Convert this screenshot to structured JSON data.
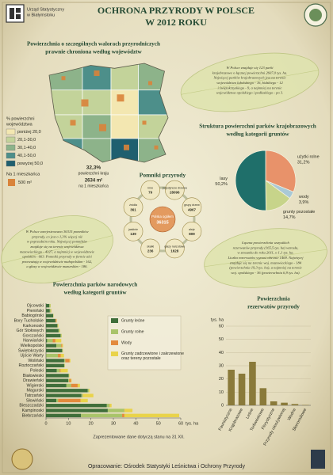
{
  "header": {
    "institution": [
      "Urząd Statystyczny",
      "w Białymstoku"
    ],
    "title_line1": "OCHRONA PRZYRODY W POLSCE",
    "title_line2": "W 2012 ROKU"
  },
  "map": {
    "title": [
      "Powierzchnia o szczególnych walorach przyrodniczych",
      "prawnie chroniona według województw"
    ],
    "legend_title": [
      "% powierzchni",
      "województwa"
    ],
    "classes": [
      {
        "label": "poniżej 20,0",
        "color": "#f3e7b1"
      },
      {
        "label": "20,1-30,0",
        "color": "#c3d39a"
      },
      {
        "label": "30,1-40,0",
        "color": "#8db38a"
      },
      {
        "label": "40,1-50,0",
        "color": "#4d8f8a"
      },
      {
        "label": "powyżej 50,0",
        "color": "#1f5f6f"
      }
    ],
    "per_capita_title": "Na 1 mieszkańca",
    "per_capita_sample": "500 m²",
    "country_share": "32,3%",
    "country_share_text": "powierzchni kraju",
    "per_capita_country": "2634 m²",
    "per_capita_country_text": "na 1 mieszkańca"
  },
  "notes": [
    [
      "W Polsce znajduje się 123 parki",
      "krajobrazowe o łącznej powierzchni 2607,0 tys. ha.",
      "Najwięcej parków krajobrazowych jest na terenie",
      "województwa lubelskiego - 16, łódzkiego - 12",
      "i świętokrzyskiego - 9, a najmniej na terenie",
      "województwa opolskiego i podlaskiego - po 3."
    ],
    [
      "W Polsce zarejestrowano 36315 pomników",
      "przyrody, co jest o 1,3% więcej niż",
      "w poprzednim roku. Najwięcej pomników",
      "znajduje się na terenie województwa",
      "mazowieckiego - 4327, a najmniej w województwie",
      "opolskim - 663. Pomniki przyrody w formie alei",
      "przeważają w województwie małopolskim - 162,",
      "a głazy w województwie mazurskim - 186."
    ],
    [
      "Łączna powierzchnia wszystkich",
      "rezerwatów przyrody (165,5 tys. ha) wzrosła,",
      "w stosunku do roku 2011, o 1,1 tys. ha.",
      "Liczba rezerwatów wynosi obecnie 1469. Najwięcej",
      "znajduje się na terenie woj. mazowieckiego - 184",
      "(powierzchnia 19,3 tys. ha), a najmniej na terenie",
      "woj. opolskiego - 36 (powierzchnia 6,9 tys. ha)."
    ]
  ],
  "monuments": {
    "title": "Pomniki przyrody",
    "total": {
      "label": "Polska ogółem",
      "value": 36315
    },
    "items": [
      {
        "label": "pojedyncze drzewa",
        "value": 28096
      },
      {
        "label": "grupy drzew",
        "value": 4967
      },
      {
        "label": "aleje",
        "value": 809
      },
      {
        "label": "głazy narzutowe",
        "value": 1628
      },
      {
        "label": "skałki",
        "value": 236
      },
      {
        "label": "jaskinie",
        "value": 139
      },
      {
        "label": "źródła",
        "value": 361
      },
      {
        "label": "inne",
        "value": 79
      }
    ]
  },
  "chart_data": [
    {
      "type": "pie",
      "title": [
        "Struktura powierzchni parków krajobrazowych",
        "według kategorii gruntów"
      ],
      "categories": [
        "użytki rolne",
        "wody",
        "grunty pozostałe",
        "lasy"
      ],
      "values": [
        31.2,
        3.9,
        14.7,
        50.2
      ],
      "value_labels": [
        "31,2%",
        "3,9%",
        "14,7%",
        "50,2%"
      ],
      "colors": [
        "#e8926a",
        "#a9c9d6",
        "#c7d48a",
        "#1f6f6a"
      ]
    },
    {
      "type": "bar",
      "orientation": "horizontal",
      "stacked": true,
      "title": [
        "Powierzchnia parków narodowych",
        "według kategorii gruntów"
      ],
      "categories": [
        "Ojcowski",
        "Pieniński",
        "Babiogórski",
        "Bory Tucholskie",
        "Karkonoski",
        "Gór Stołowych",
        "Gorczański",
        "Narwiański",
        "Wielkopolski",
        "Świętokrzyski",
        "Ujście Warty",
        "Woliński",
        "Roztoczański",
        "Poleski",
        "Białowieski",
        "Drawieński",
        "Wigierski",
        "Magurski",
        "Tatrzański",
        "Słowiński",
        "Bieszczadzki",
        "Kampinoski",
        "Biebrzański"
      ],
      "series": [
        {
          "name": "Grunty leśne",
          "color": "#3f6e3a",
          "values": [
            1.5,
            1.7,
            3.2,
            4.2,
            5.1,
            5.6,
            6.5,
            0.5,
            4.6,
            7.2,
            0.1,
            8.1,
            8.1,
            4.8,
            10.1,
            9.9,
            9.1,
            18.6,
            15.8,
            4.6,
            27.1,
            27.5,
            15.6
          ]
        },
        {
          "name": "Grunty rolne",
          "color": "#a9c46a",
          "values": [
            0.5,
            0.5,
            0.1,
            0.1,
            0.1,
            0.5,
            0.4,
            2.5,
            2.2,
            0.3,
            5.2,
            0.5,
            0.2,
            1.3,
            0.2,
            0.4,
            2.1,
            0.5,
            0.6,
            0.8,
            1.2,
            7.4,
            18.3
          ]
        },
        {
          "name": "Wody",
          "color": "#e38a3c",
          "values": [
            0,
            0.1,
            0,
            0.4,
            0,
            0,
            0,
            1.2,
            0.4,
            0,
            1.3,
            1.9,
            0,
            0.4,
            0,
            0.8,
            2.9,
            0,
            0.1,
            10.0,
            0.1,
            0.1,
            1.0
          ]
        },
        {
          "name": "Grunty zadrzewione i zakrzewione oraz tereny pozostałe",
          "color": "#e9d34a",
          "values": [
            0.1,
            0.1,
            0.1,
            0.1,
            0.3,
            0.2,
            0.1,
            2.6,
            0.4,
            0.1,
            1.4,
            0.4,
            0.1,
            3.2,
            0.2,
            0.3,
            1.0,
            0.4,
            4.6,
            3.2,
            0.8,
            3.5,
            24.4
          ]
        }
      ],
      "xlim": [
        0,
        60
      ],
      "xticks": [
        0,
        10,
        20,
        30,
        40,
        50,
        60
      ],
      "xlabel": "tys. ha"
    },
    {
      "type": "bar",
      "title": [
        "Powierzchnia",
        "rezerwatów przyrody"
      ],
      "categories": [
        "Faunistyczne",
        "Krajobrazowe",
        "Leśne",
        "Torfowiskowe",
        "Florystyczne",
        "Przyrody nieożywionej",
        "Wodne",
        "Słonoroślowe"
      ],
      "values": [
        27,
        24,
        33,
        13,
        3,
        2,
        1,
        0.3
      ],
      "color": "#8a7a3a",
      "ylim": [
        0,
        60
      ],
      "yticks": [
        0,
        10,
        20,
        30,
        40,
        50,
        60
      ],
      "ylabel": "tys. ha",
      "grid": true
    }
  ],
  "footer": {
    "note": "Zaprezentowane dane dotyczą stanu na 31 XII.",
    "credit": "Opracowanie: Ośrodek Statystyki Leśnictwa i Ochrony Przyrody"
  }
}
